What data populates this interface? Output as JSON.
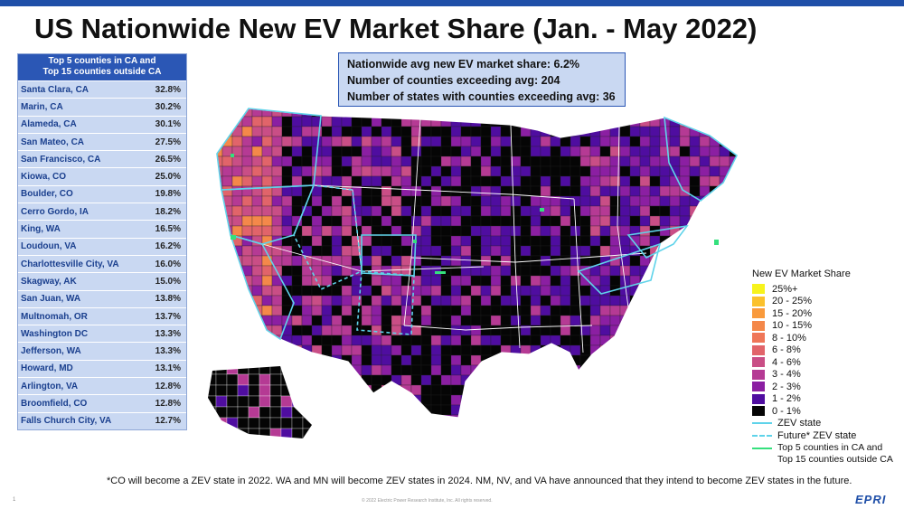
{
  "title": "US Nationwide New EV Market Share (Jan. - May 2022)",
  "table": {
    "header_line1": "Top 5 counties in CA and",
    "header_line2": "Top 15 counties outside CA",
    "rows": [
      {
        "name": "Santa Clara, CA",
        "value": "32.8%"
      },
      {
        "name": "Marin, CA",
        "value": "30.2%"
      },
      {
        "name": "Alameda, CA",
        "value": "30.1%"
      },
      {
        "name": "San Mateo, CA",
        "value": "27.5%"
      },
      {
        "name": "San Francisco, CA",
        "value": "26.5%"
      },
      {
        "name": "Kiowa, CO",
        "value": "25.0%"
      },
      {
        "name": "Boulder, CO",
        "value": "19.8%"
      },
      {
        "name": "Cerro Gordo, IA",
        "value": "18.2%"
      },
      {
        "name": "King, WA",
        "value": "16.5%"
      },
      {
        "name": "Loudoun, VA",
        "value": "16.2%"
      },
      {
        "name": "Charlottesville City, VA",
        "value": "16.0%"
      },
      {
        "name": "Skagway, AK",
        "value": "15.0%"
      },
      {
        "name": "San Juan, WA",
        "value": "13.8%"
      },
      {
        "name": "Multnomah, OR",
        "value": "13.7%"
      },
      {
        "name": "Washington DC",
        "value": "13.3%"
      },
      {
        "name": "Jefferson, WA",
        "value": "13.3%"
      },
      {
        "name": "Howard, MD",
        "value": "13.1%"
      },
      {
        "name": "Arlington, VA",
        "value": "12.8%"
      },
      {
        "name": "Broomfield, CO",
        "value": "12.8%"
      },
      {
        "name": "Falls Church City, VA",
        "value": "12.7%"
      }
    ]
  },
  "info": {
    "line1": "Nationwide avg new EV market share: 6.2%",
    "line2": "Number of counties exceeding avg: 204",
    "line3": "Number of states with counties exceeding avg: 36"
  },
  "legend": {
    "title": "New EV Market Share",
    "bins": [
      {
        "label": "25%+",
        "color": "#f7f31c"
      },
      {
        "label": "20 - 25%",
        "color": "#fbc12c"
      },
      {
        "label": "15 - 20%",
        "color": "#f99a3c"
      },
      {
        "label": "10 - 15%",
        "color": "#f4884a"
      },
      {
        "label": "8 - 10%",
        "color": "#ef7658"
      },
      {
        "label": "6 - 8%",
        "color": "#e1646a"
      },
      {
        "label": "4 - 6%",
        "color": "#c94e86"
      },
      {
        "label": "3 - 4%",
        "color": "#b53a94"
      },
      {
        "label": "2 - 3%",
        "color": "#8b1fa2"
      },
      {
        "label": "1 - 2%",
        "color": "#4f0da0"
      },
      {
        "label": "0 - 1%",
        "color": "#050505"
      }
    ],
    "zev_label": "ZEV state",
    "future_label": "Future* ZEV state",
    "top_label_line1": "Top 5 counties in CA and",
    "top_label_line2": "Top 15 counties outside CA",
    "zev_color": "#5fd3ea",
    "top_color": "#35e07d"
  },
  "footnote": "*CO will become  a ZEV state in 2022. WA and MN will become ZEV states in 2024. NM, NV, and VA have announced  that they intend to become ZEV states in the future.",
  "copyright": "© 2022 Electric Power Research Institute, Inc. All rights reserved.",
  "page_number": "1",
  "logo": "EPRI"
}
